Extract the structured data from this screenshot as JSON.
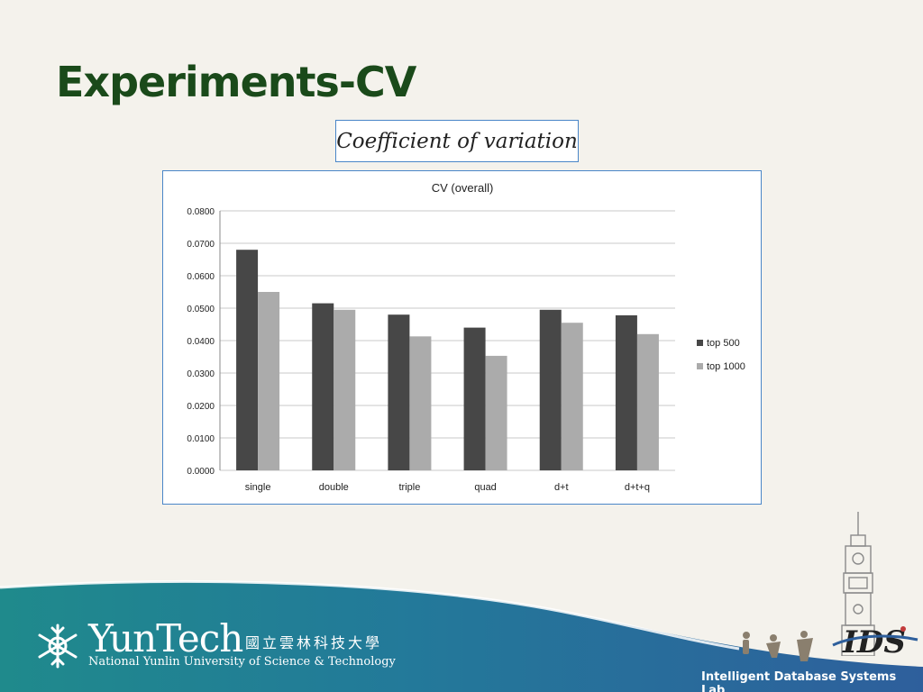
{
  "slide": {
    "title": "Experiments-CV",
    "subtitle_box": "Coefficient of variation"
  },
  "chart_data": {
    "type": "bar",
    "title": "CV (overall)",
    "categories": [
      "single",
      "double",
      "triple",
      "quad",
      "d+t",
      "d+t+q"
    ],
    "series": [
      {
        "name": "top 500",
        "values": [
          0.068,
          0.0515,
          0.048,
          0.044,
          0.0495,
          0.0478
        ],
        "color": "#474747"
      },
      {
        "name": "top 1000",
        "values": [
          0.055,
          0.0495,
          0.0413,
          0.0353,
          0.0455,
          0.042
        ],
        "color": "#ababab"
      }
    ],
    "yticks": [
      "0.0000",
      "0.0100",
      "0.0200",
      "0.0300",
      "0.0400",
      "0.0500",
      "0.0600",
      "0.0700",
      "0.0800"
    ],
    "ylim": [
      0,
      0.08
    ],
    "xlabel": "",
    "ylabel": "",
    "grid": true,
    "legend_position": "right"
  },
  "footer": {
    "university_name": "YunTech",
    "university_chinese": "國立雲林科技大學",
    "university_english": "National Yunlin University of Science & Technology",
    "lab_name": "Intelligent Database Systems Lab",
    "logo_text": "IDS",
    "colors": {
      "teal": "#1f8a8c",
      "blue": "#2e5f9c"
    }
  }
}
